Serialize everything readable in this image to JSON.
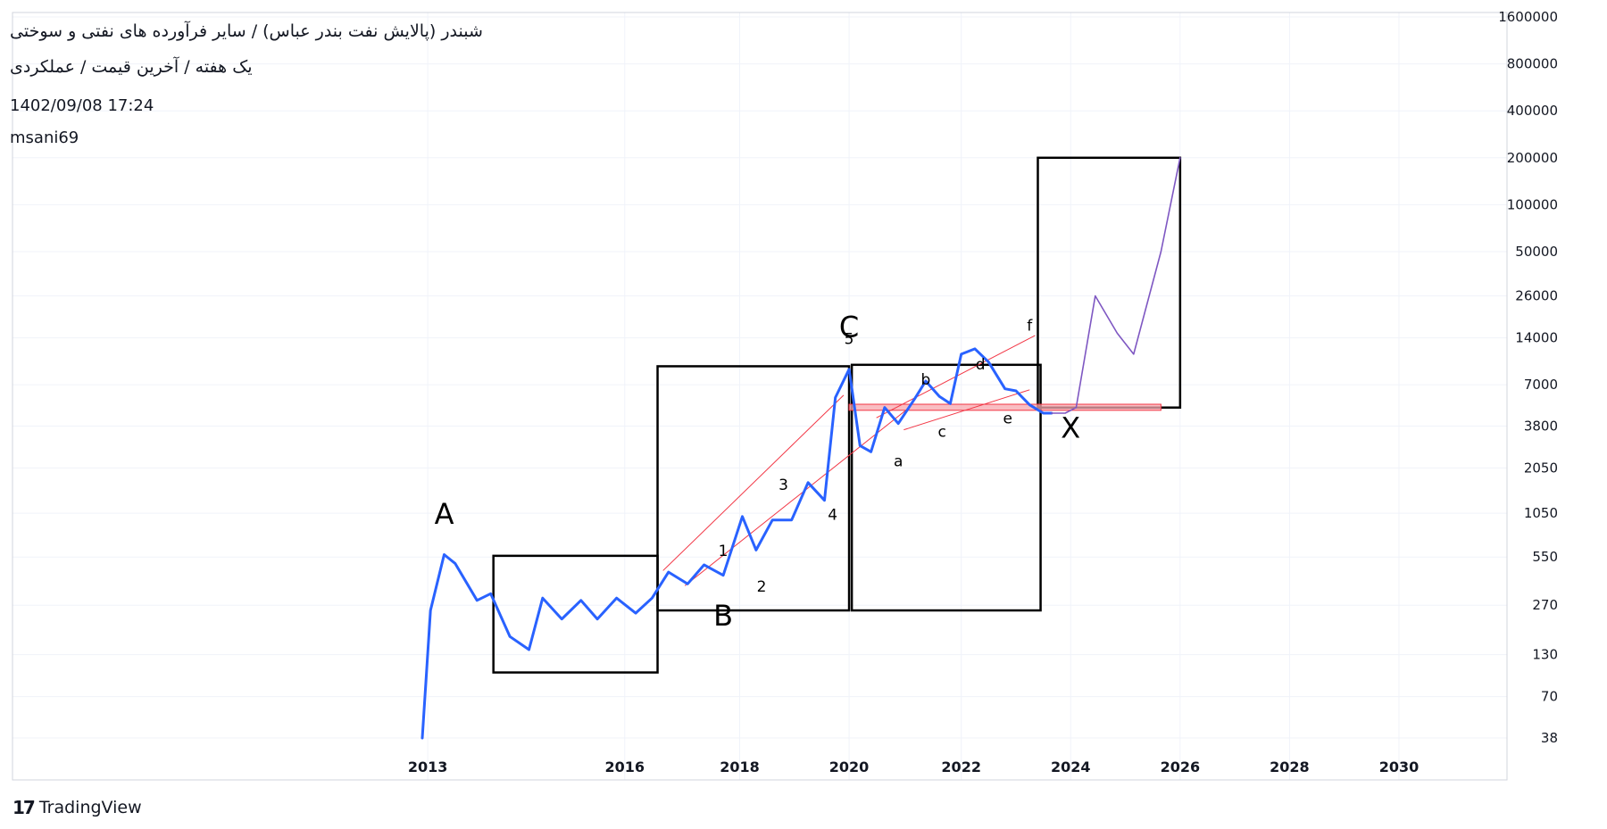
{
  "header": {
    "title": "شبندر (پالایش نفت بندر عباس) / سایر فرآورده های نفتی و سوختی",
    "subtitle": "یک هفته / آخرین قیمت / عملکردی",
    "datetime": "1402/09/08 17:24",
    "author": "msani69"
  },
  "branding": {
    "logo_icon": "tradingview-logo-icon",
    "name": "TradingView"
  },
  "colors": {
    "price_line": "#2962ff",
    "trend_line": "#f23645",
    "forecast": "#7e57c2",
    "zone": "#f7a7ae",
    "boxes": "#000000"
  },
  "chart_data": {
    "type": "line",
    "scale": "log",
    "grid": true,
    "y_ticks": [
      38,
      70,
      130,
      270,
      550,
      1050,
      2050,
      3800,
      7000,
      14000,
      26000,
      50000,
      100000,
      200000,
      400000,
      800000,
      1600000
    ],
    "x_ticks": [
      "2013",
      "2016",
      "2018",
      "2020",
      "2022",
      "2024",
      "2026",
      "2028",
      "2030"
    ],
    "x_tick_values": [
      2012.2,
      2015.8,
      2017.9,
      2019.9,
      2021.95,
      2023.95,
      2025.95,
      2027.95,
      2029.95
    ],
    "series": [
      {
        "role": "price",
        "x": [
          2012.1,
          2012.25,
          2012.5,
          2012.7,
          2013.1,
          2013.35,
          2013.7,
          2014.05,
          2014.3,
          2014.65,
          2015.0,
          2015.3,
          2015.65,
          2016.0,
          2016.3,
          2016.6,
          2016.95,
          2017.25,
          2017.6,
          2017.95,
          2018.2,
          2018.5,
          2018.85,
          2019.15,
          2019.45,
          2019.65,
          2019.9,
          2020.1,
          2020.3,
          2020.55,
          2020.8,
          2021.1,
          2021.3,
          2021.55,
          2021.75,
          2021.95,
          2022.2,
          2022.45,
          2022.75,
          2022.95,
          2023.2,
          2023.45,
          2023.6
        ],
        "y": [
          38,
          250,
          570,
          500,
          290,
          320,
          170,
          140,
          300,
          220,
          290,
          220,
          300,
          240,
          300,
          440,
          370,
          490,
          420,
          1000,
          610,
          950,
          950,
          1650,
          1270,
          5800,
          8800,
          2850,
          2600,
          5000,
          3950,
          5700,
          7400,
          5900,
          5300,
          11000,
          11900,
          9800,
          6600,
          6400,
          5200,
          4600,
          4600
        ]
      },
      {
        "role": "forecast",
        "x": [
          2023.6,
          2023.85,
          2024.05,
          2024.4,
          2024.8,
          2025.1,
          2025.6,
          2025.95
        ],
        "y": [
          4600,
          4600,
          5000,
          26000,
          15000,
          11000,
          50000,
          200000
        ]
      }
    ],
    "annotations": [
      {
        "label": "A",
        "x": 2012.5,
        "y": 900
      },
      {
        "label": "B",
        "x": 2017.6,
        "y": 200
      },
      {
        "label": "C",
        "x": 2019.9,
        "y": 14200
      },
      {
        "label": "X",
        "x": 2023.95,
        "y": 3200
      },
      {
        "label": "1",
        "x": 2017.6,
        "y": 560
      },
      {
        "label": "2",
        "x": 2018.3,
        "y": 330
      },
      {
        "label": "3",
        "x": 2018.7,
        "y": 1480
      },
      {
        "label": "4",
        "x": 2019.6,
        "y": 950
      },
      {
        "label": "5",
        "x": 2019.9,
        "y": 12800
      },
      {
        "label": "a",
        "x": 2020.8,
        "y": 2100
      },
      {
        "label": "b",
        "x": 2021.3,
        "y": 7000
      },
      {
        "label": "c",
        "x": 2021.6,
        "y": 3250
      },
      {
        "label": "d",
        "x": 2022.3,
        "y": 8800
      },
      {
        "label": "e",
        "x": 2022.8,
        "y": 3950
      },
      {
        "label": "f",
        "x": 2023.2,
        "y": 15600
      }
    ],
    "boxes": [
      {
        "x0": 2013.4,
        "x1": 2016.4,
        "y0": 100,
        "y1": 560
      },
      {
        "x0": 2016.4,
        "x1": 2019.9,
        "y0": 250,
        "y1": 9200
      },
      {
        "x0": 2019.95,
        "x1": 2023.4,
        "y0": 250,
        "y1": 9400
      },
      {
        "x0": 2023.35,
        "x1": 2025.95,
        "y0": 5000,
        "y1": 200000
      }
    ],
    "zone": {
      "x0": 2019.9,
      "x1": 2025.6,
      "y0": 4800,
      "y1": 5250
    },
    "trend_lines": [
      {
        "x0": 2016.5,
        "y0": 450,
        "x1": 2019.8,
        "y1": 6000
      },
      {
        "x0": 2016.9,
        "y0": 360,
        "x1": 2021.0,
        "y1": 5000
      },
      {
        "x0": 2020.4,
        "y0": 4300,
        "x1": 2023.3,
        "y1": 14500
      },
      {
        "x0": 2020.9,
        "y0": 3600,
        "x1": 2023.2,
        "y1": 6500
      }
    ]
  }
}
